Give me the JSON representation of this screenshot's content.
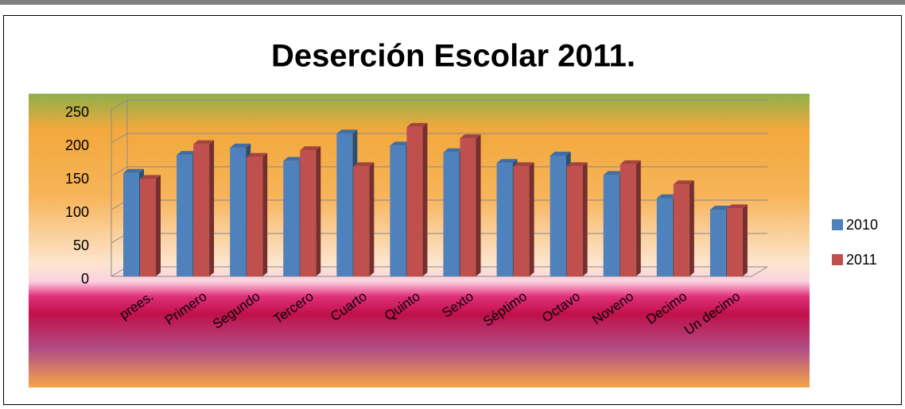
{
  "chart_data": {
    "type": "bar",
    "title": "Deserción Escolar 2011.",
    "categories": [
      "prees.",
      "Primero",
      "Segundo",
      "Tercero",
      "Cuarto",
      "Quinto",
      "Sexto",
      "Séptimo",
      "Octavo",
      "Noveno",
      "Decimo",
      "Un decimo"
    ],
    "series": [
      {
        "name": "2010",
        "color": "#4f81bd",
        "values": [
          155,
          182,
          193,
          173,
          214,
          196,
          186,
          170,
          181,
          152,
          117,
          100
        ]
      },
      {
        "name": "2011",
        "color": "#c0504d",
        "values": [
          146,
          198,
          179,
          189,
          165,
          224,
          207,
          165,
          165,
          168,
          138,
          102
        ]
      }
    ],
    "ylim": [
      0,
      250
    ],
    "yticks": [
      0,
      50,
      100,
      150,
      200,
      250
    ],
    "grid": true,
    "legend": "right"
  }
}
